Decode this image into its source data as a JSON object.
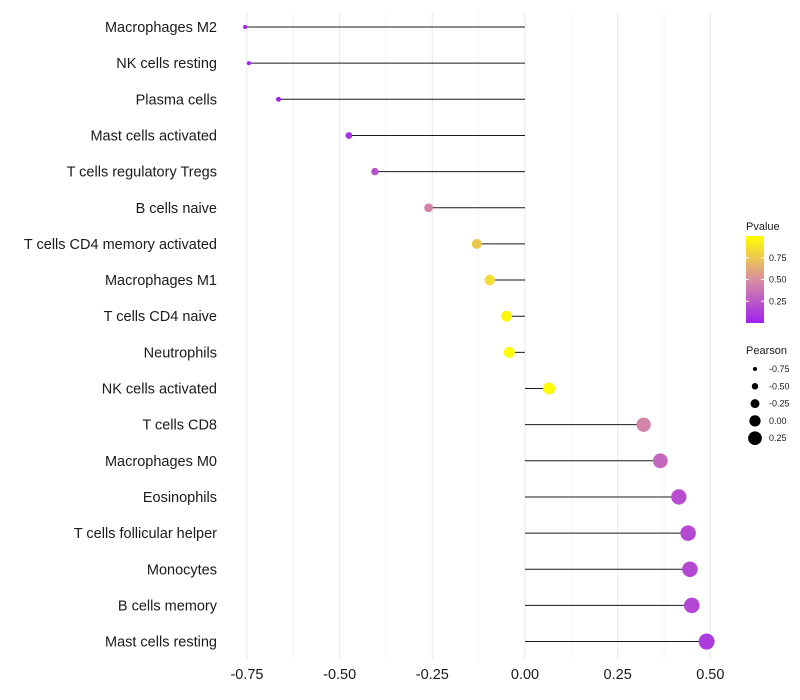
{
  "chart_data": {
    "type": "lollipop",
    "title": "",
    "xlabel": "",
    "ylabel": "",
    "xlim": [
      -0.78,
      0.53
    ],
    "xticks": [
      -0.75,
      -0.5,
      -0.25,
      0.0,
      0.25,
      0.5
    ],
    "xtick_labels": [
      "-0.75",
      "-0.50",
      "-0.25",
      "0.00",
      "0.25",
      "0.50"
    ],
    "grid": true,
    "categories": [
      "Macrophages M2",
      "NK cells resting",
      "Plasma cells",
      "Mast cells activated",
      "T cells regulatory  Tregs",
      "B cells naive",
      "T cells CD4 memory activated",
      "Macrophages M1",
      "T cells CD4 naive",
      "Neutrophils",
      "NK cells activated",
      "T cells CD8",
      "Macrophages M0",
      "Eosinophils",
      "T cells follicular helper",
      "Monocytes",
      "B cells memory",
      "Mast cells resting"
    ],
    "pearson": [
      -0.755,
      -0.745,
      -0.665,
      -0.475,
      -0.405,
      -0.26,
      -0.13,
      -0.095,
      -0.05,
      -0.042,
      0.065,
      0.32,
      0.365,
      0.415,
      0.44,
      0.445,
      0.45,
      0.49
    ],
    "pvalue": [
      0.0,
      0.0,
      0.0,
      0.07,
      0.22,
      0.45,
      0.75,
      0.85,
      0.97,
      0.98,
      0.98,
      0.45,
      0.32,
      0.2,
      0.18,
      0.18,
      0.17,
      0.12
    ],
    "legend": {
      "position": "right",
      "color": {
        "title": "Pvalue",
        "ticks": [
          0.75,
          0.5,
          0.25
        ],
        "tick_labels": [
          "0.75",
          "0.50",
          "0.25"
        ],
        "range": [
          0.0,
          1.0
        ],
        "low_color": "#a020f0",
        "mid_color": "#d98fa0",
        "high_color": "#ffff00"
      },
      "size": {
        "title": "Pearson",
        "values": [
          -0.75,
          -0.5,
          -0.25,
          0.0,
          0.25
        ],
        "labels": [
          "-0.75",
          "-0.50",
          "-0.25",
          "0.00",
          "0.25"
        ]
      }
    },
    "colors": {
      "grid": "#ececec",
      "segment": "#1a1a1a",
      "legend_point": "#000000"
    }
  }
}
